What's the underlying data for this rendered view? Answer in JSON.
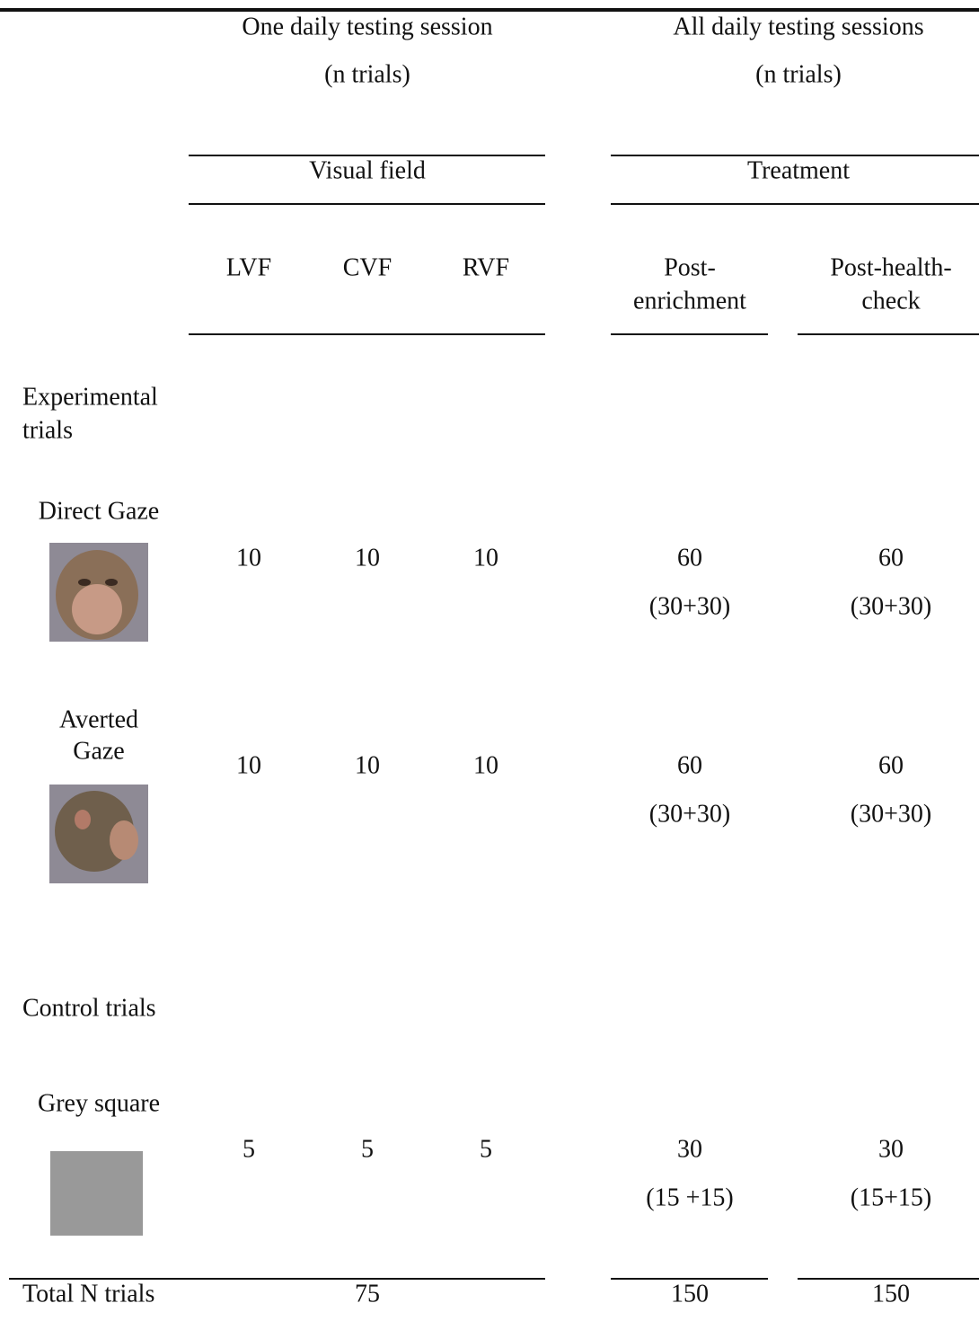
{
  "header": {
    "left": {
      "title": "One daily testing session",
      "note": "(n trials)"
    },
    "right": {
      "title": "All daily testing sessions",
      "note": "(n trials)"
    }
  },
  "groups": {
    "left": "Visual field",
    "right": "Treatment"
  },
  "columns": [
    [
      "LVF"
    ],
    [
      "CVF"
    ],
    [
      "RVF"
    ],
    [
      "Post-",
      "enrichment"
    ],
    [
      "Post-health-",
      "check"
    ]
  ],
  "sections": {
    "experimental": [
      "Experimental",
      "trials"
    ],
    "control": [
      "Control trials"
    ]
  },
  "rows": [
    {
      "label": [
        "Direct Gaze"
      ],
      "cells": [
        [
          10
        ],
        [
          10
        ],
        [
          10
        ],
        [
          60,
          "(30+30)"
        ],
        [
          60,
          "(30+30)"
        ]
      ]
    },
    {
      "label": [
        "Averted",
        "Gaze"
      ],
      "cells": [
        [
          10
        ],
        [
          10
        ],
        [
          10
        ],
        [
          60,
          "(30+30)"
        ],
        [
          60,
          "(30+30)"
        ]
      ]
    },
    {
      "label": [
        "Grey square"
      ],
      "cells": [
        [
          5
        ],
        [
          5
        ],
        [
          5
        ],
        [
          30,
          "(15 +15)"
        ],
        [
          30,
          "(15+15)"
        ]
      ]
    }
  ],
  "total": {
    "label": "Total N trials",
    "values": [
      75,
      150,
      150
    ]
  }
}
